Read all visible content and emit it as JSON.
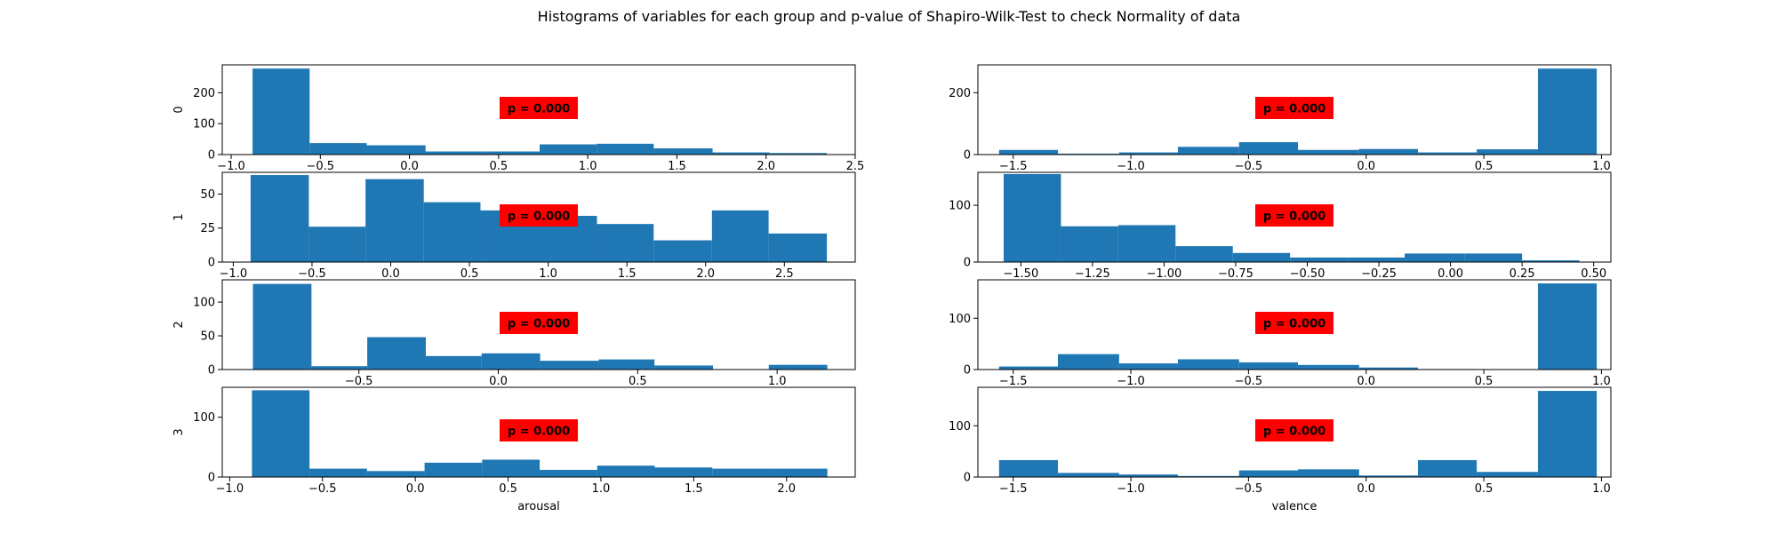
{
  "title": "Histograms of variables for each group and p-value of Shapiro-Wilk-Test to check Normality of data",
  "colors": {
    "bar": "#1f77b4",
    "pbox": "#ff0000",
    "axis": "#000000",
    "background": "#ffffff"
  },
  "chart_data": [
    {
      "type": "bar",
      "row": 0,
      "col": 0,
      "ylabel": "0",
      "xlabel": "",
      "annotation": "p = 0.000",
      "xlim": [
        -1.05,
        2.5
      ],
      "ylim": [
        0,
        290
      ],
      "xticks": [
        -1.0,
        -0.5,
        0.0,
        0.5,
        1.0,
        1.5,
        2.0,
        2.5
      ],
      "xtick_labels": [
        "−1.0",
        "−0.5",
        "0.0",
        "0.5",
        "1.0",
        "1.5",
        "2.0",
        "2.5"
      ],
      "yticks": [
        0,
        100,
        200
      ],
      "ytick_labels": [
        "0",
        "100",
        "200"
      ],
      "bin_edges": [
        -0.88,
        -0.56,
        -0.24,
        0.09,
        0.41,
        0.73,
        1.05,
        1.37,
        1.7,
        2.02,
        2.34
      ],
      "values": [
        278,
        37,
        30,
        10,
        10,
        33,
        35,
        20,
        7,
        5
      ]
    },
    {
      "type": "bar",
      "row": 0,
      "col": 1,
      "ylabel": "",
      "xlabel": "",
      "annotation": "p = 0.000",
      "xlim": [
        -1.65,
        1.04
      ],
      "ylim": [
        0,
        290
      ],
      "xticks": [
        -1.5,
        -1.0,
        -0.5,
        0.0,
        0.5,
        1.0
      ],
      "xtick_labels": [
        "−1.5",
        "−1.0",
        "−0.5",
        "0.0",
        "0.5",
        "1.0"
      ],
      "yticks": [
        0,
        200
      ],
      "ytick_labels": [
        "0",
        "200"
      ],
      "bin_edges": [
        -1.56,
        -1.31,
        -1.05,
        -0.8,
        -0.54,
        -0.29,
        -0.03,
        0.22,
        0.47,
        0.73,
        0.98
      ],
      "values": [
        15,
        3,
        7,
        25,
        40,
        15,
        18,
        7,
        17,
        278
      ]
    },
    {
      "type": "bar",
      "row": 1,
      "col": 0,
      "ylabel": "1",
      "xlabel": "",
      "annotation": "p = 0.000",
      "xlim": [
        -1.07,
        2.95
      ],
      "ylim": [
        0,
        66
      ],
      "xticks": [
        -1.0,
        -0.5,
        0.0,
        0.5,
        1.0,
        1.5,
        2.0,
        2.5
      ],
      "xtick_labels": [
        "−1.0",
        "−0.5",
        "0.0",
        "0.5",
        "1.0",
        "1.5",
        "2.0",
        "2.5"
      ],
      "yticks": [
        0,
        25,
        50
      ],
      "ytick_labels": [
        "0",
        "25",
        "50"
      ],
      "bin_edges": [
        -0.89,
        -0.52,
        -0.16,
        0.21,
        0.57,
        0.94,
        1.31,
        1.67,
        2.04,
        2.4,
        2.77
      ],
      "values": [
        64,
        26,
        61,
        44,
        38,
        34,
        28,
        16,
        38,
        21
      ]
    },
    {
      "type": "bar",
      "row": 1,
      "col": 1,
      "ylabel": "",
      "xlabel": "",
      "annotation": "p = 0.000",
      "xlim": [
        -1.65,
        0.56
      ],
      "ylim": [
        0,
        158
      ],
      "xticks": [
        -1.5,
        -1.25,
        -1.0,
        -0.75,
        -0.5,
        -0.25,
        0.0,
        0.25,
        0.5
      ],
      "xtick_labels": [
        "−1.50",
        "−1.25",
        "−1.00",
        "−0.75",
        "−0.50",
        "−0.25",
        "0.00",
        "0.25",
        "0.50"
      ],
      "yticks": [
        0,
        100
      ],
      "ytick_labels": [
        "0",
        "100"
      ],
      "bin_edges": [
        -1.56,
        -1.36,
        -1.16,
        -0.96,
        -0.76,
        -0.56,
        -0.36,
        -0.16,
        0.05,
        0.25,
        0.45
      ],
      "values": [
        155,
        63,
        65,
        28,
        16,
        8,
        8,
        15,
        15,
        3
      ]
    },
    {
      "type": "bar",
      "row": 2,
      "col": 0,
      "ylabel": "2",
      "xlabel": "",
      "annotation": "p = 0.000",
      "xlim": [
        -0.99,
        1.28
      ],
      "ylim": [
        0,
        133
      ],
      "xticks": [
        -0.5,
        0.0,
        0.5,
        1.0
      ],
      "xtick_labels": [
        "−0.5",
        "0.0",
        "0.5",
        "1.0"
      ],
      "yticks": [
        0,
        50,
        100
      ],
      "ytick_labels": [
        "0",
        "50",
        "100"
      ],
      "bin_edges": [
        -0.88,
        -0.67,
        -0.47,
        -0.26,
        -0.06,
        0.15,
        0.36,
        0.56,
        0.77,
        0.97,
        1.18
      ],
      "values": [
        127,
        5,
        48,
        20,
        24,
        13,
        15,
        6,
        0,
        7
      ]
    },
    {
      "type": "bar",
      "row": 2,
      "col": 1,
      "ylabel": "",
      "xlabel": "",
      "annotation": "p = 0.000",
      "xlim": [
        -1.65,
        1.04
      ],
      "ylim": [
        0,
        175
      ],
      "xticks": [
        -1.5,
        -1.0,
        -0.5,
        0.0,
        0.5,
        1.0
      ],
      "xtick_labels": [
        "−1.5",
        "−1.0",
        "−0.5",
        "0.0",
        "0.5",
        "1.0"
      ],
      "yticks": [
        0,
        100
      ],
      "ytick_labels": [
        "0",
        "100"
      ],
      "bin_edges": [
        -1.56,
        -1.31,
        -1.05,
        -0.8,
        -0.54,
        -0.29,
        -0.03,
        0.22,
        0.47,
        0.73,
        0.98
      ],
      "values": [
        6,
        30,
        12,
        20,
        14,
        9,
        4,
        1,
        0,
        168
      ]
    },
    {
      "type": "bar",
      "row": 3,
      "col": 0,
      "ylabel": "3",
      "xlabel": "arousal",
      "annotation": "p = 0.000",
      "xlim": [
        -1.04,
        2.37
      ],
      "ylim": [
        0,
        150
      ],
      "xticks": [
        -1.0,
        -0.5,
        0.0,
        0.5,
        1.0,
        1.5,
        2.0
      ],
      "xtick_labels": [
        "−1.0",
        "−0.5",
        "0.0",
        "0.5",
        "1.0",
        "1.5",
        "2.0"
      ],
      "yticks": [
        0,
        100
      ],
      "ytick_labels": [
        "0",
        "100"
      ],
      "bin_edges": [
        -0.88,
        -0.57,
        -0.26,
        0.05,
        0.36,
        0.67,
        0.98,
        1.29,
        1.6,
        1.91,
        2.22
      ],
      "values": [
        145,
        14,
        10,
        24,
        29,
        12,
        19,
        16,
        14,
        14
      ]
    },
    {
      "type": "bar",
      "row": 3,
      "col": 1,
      "ylabel": "",
      "xlabel": "valence",
      "annotation": "p = 0.000",
      "xlim": [
        -1.65,
        1.04
      ],
      "ylim": [
        0,
        175
      ],
      "xticks": [
        -1.5,
        -1.0,
        -0.5,
        0.0,
        0.5,
        1.0
      ],
      "xtick_labels": [
        "−1.5",
        "−1.0",
        "−0.5",
        "0.0",
        "0.5",
        "1.0"
      ],
      "yticks": [
        0,
        100
      ],
      "ytick_labels": [
        "0",
        "100"
      ],
      "bin_edges": [
        -1.56,
        -1.31,
        -1.05,
        -0.8,
        -0.54,
        -0.29,
        -0.03,
        0.22,
        0.47,
        0.73,
        0.98
      ],
      "values": [
        33,
        8,
        5,
        2,
        13,
        15,
        3,
        33,
        10,
        168
      ]
    }
  ]
}
